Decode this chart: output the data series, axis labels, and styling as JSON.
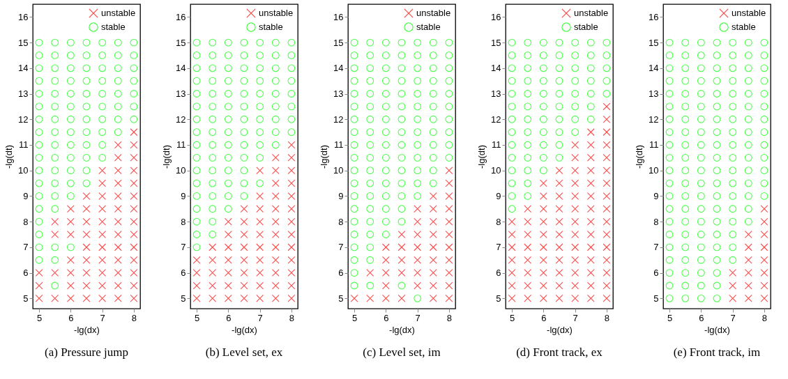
{
  "chart_data": [
    {
      "type": "scatter",
      "title": "(a) Pressure jump",
      "xlabel": "-lg(dx)",
      "ylabel": "-lg(dt)",
      "xlim": [
        4.8,
        8.2
      ],
      "ylim": [
        4.6,
        16.5
      ],
      "xticks": [
        5,
        6,
        7,
        8
      ],
      "yticks": [
        5,
        6,
        7,
        8,
        9,
        10,
        11,
        12,
        13,
        14,
        15,
        16
      ],
      "grid": false,
      "legend": "top right",
      "series": [
        {
          "name": "unstable",
          "color": "#ff0000",
          "marker": "cross",
          "x": [
            5,
            5,
            5,
            5.5,
            5.5,
            5.5,
            5.5,
            6,
            6,
            6,
            6,
            6,
            6,
            6,
            6.5,
            6.5,
            6.5,
            6.5,
            6.5,
            6.5,
            6.5,
            6.5,
            6.5,
            7,
            7,
            7,
            7,
            7,
            7,
            7,
            7,
            7,
            7,
            7,
            7.5,
            7.5,
            7.5,
            7.5,
            7.5,
            7.5,
            7.5,
            7.5,
            7.5,
            7.5,
            7.5,
            7.5,
            7.5,
            8,
            8,
            8,
            8,
            8,
            8,
            8,
            8,
            8,
            8,
            8,
            8,
            8,
            8
          ],
          "values": [
            5,
            5.5,
            6,
            5,
            6,
            7.5,
            8,
            5,
            5.5,
            6,
            6.5,
            7.5,
            8,
            8.5,
            5,
            5.5,
            6,
            6.5,
            7,
            7.5,
            8,
            8.5,
            9,
            5,
            5.5,
            6,
            6.5,
            7,
            7.5,
            8,
            8.5,
            9,
            9.5,
            10,
            5,
            5.5,
            6,
            6.5,
            7,
            7.5,
            8,
            8.5,
            9,
            9.5,
            10,
            10.5,
            11,
            5,
            5.5,
            6,
            6.5,
            7,
            7.5,
            8,
            8.5,
            9,
            9.5,
            10,
            10.5,
            11,
            11.5
          ]
        },
        {
          "name": "stable",
          "color": "#00ff00",
          "marker": "circle",
          "x": [
            5,
            5,
            5,
            5,
            5,
            5,
            5,
            5,
            5,
            5,
            5,
            5,
            5,
            5,
            5,
            5,
            5,
            5,
            5.5,
            5.5,
            5.5,
            5.5,
            5.5,
            5.5,
            5.5,
            5.5,
            5.5,
            5.5,
            5.5,
            5.5,
            5.5,
            5.5,
            5.5,
            5.5,
            5.5,
            6,
            6,
            6,
            6,
            6,
            6,
            6,
            6,
            6,
            6,
            6,
            6,
            6,
            6,
            6.5,
            6.5,
            6.5,
            6.5,
            6.5,
            6.5,
            6.5,
            6.5,
            6.5,
            6.5,
            6.5,
            6.5,
            7,
            7,
            7,
            7,
            7,
            7,
            7,
            7,
            7,
            7,
            7.5,
            7.5,
            7.5,
            7.5,
            7.5,
            7.5,
            7.5,
            7.5,
            8,
            8,
            8,
            8,
            8,
            8,
            8
          ],
          "values": [
            6.5,
            7,
            7.5,
            8,
            8.5,
            9,
            9.5,
            10,
            10.5,
            11,
            11.5,
            12,
            12.5,
            13,
            13.5,
            14,
            14.5,
            15,
            5.5,
            6.5,
            7,
            8.5,
            9,
            9.5,
            10,
            10.5,
            11,
            11.5,
            12,
            12.5,
            13,
            13.5,
            14,
            14.5,
            15,
            7,
            9,
            9.5,
            10,
            10.5,
            11,
            11.5,
            12,
            12.5,
            13,
            13.5,
            14,
            14.5,
            15,
            9.5,
            10,
            10.5,
            11,
            11.5,
            12,
            12.5,
            13,
            13.5,
            14,
            14.5,
            15,
            10.5,
            11,
            11.5,
            12,
            12.5,
            13,
            13.5,
            14,
            14.5,
            15,
            11.5,
            12,
            12.5,
            13,
            13.5,
            14,
            14.5,
            15,
            12,
            12.5,
            13,
            13.5,
            14,
            14.5,
            15
          ]
        }
      ]
    },
    {
      "type": "scatter",
      "title": "(b) Level set, ex",
      "xlabel": "-lg(dx)",
      "ylabel": "-lg(dt)",
      "xlim": [
        4.8,
        8.2
      ],
      "ylim": [
        4.6,
        16.5
      ],
      "xticks": [
        5,
        6,
        7,
        8
      ],
      "yticks": [
        5,
        6,
        7,
        8,
        9,
        10,
        11,
        12,
        13,
        14,
        15,
        16
      ],
      "grid": false,
      "legend": "top right",
      "series": [
        {
          "name": "unstable",
          "color": "#ff0000",
          "marker": "cross",
          "x": [
            5,
            5,
            5,
            5,
            5.5,
            5.5,
            5.5,
            5.5,
            5.5,
            6,
            6,
            6,
            6,
            6,
            6,
            6,
            6.5,
            6.5,
            6.5,
            6.5,
            6.5,
            6.5,
            6.5,
            6.5,
            7,
            7,
            7,
            7,
            7,
            7,
            7,
            7,
            7,
            7,
            7.5,
            7.5,
            7.5,
            7.5,
            7.5,
            7.5,
            7.5,
            7.5,
            7.5,
            7.5,
            7.5,
            7.5,
            8,
            8,
            8,
            8,
            8,
            8,
            8,
            8,
            8,
            8,
            8,
            8,
            8
          ],
          "values": [
            5,
            5.5,
            6,
            6.5,
            5,
            5.5,
            6,
            6.5,
            7,
            5,
            5.5,
            6,
            6.5,
            7,
            7.5,
            8,
            5,
            5.5,
            6,
            6.5,
            7,
            7.5,
            8,
            8.5,
            5,
            5.5,
            6,
            6.5,
            7,
            7.5,
            8,
            8.5,
            9,
            10,
            5,
            5.5,
            6,
            6.5,
            7,
            7.5,
            8,
            8.5,
            9,
            9.5,
            10,
            10.5,
            5,
            5.5,
            6,
            6.5,
            7,
            7.5,
            8,
            8.5,
            9,
            9.5,
            10,
            10.5,
            11
          ]
        },
        {
          "name": "stable",
          "color": "#00ff00",
          "marker": "circle",
          "x": [
            5,
            5,
            5,
            5,
            5,
            5,
            5,
            5,
            5,
            5,
            5,
            5,
            5,
            5,
            5,
            5,
            5,
            5.5,
            5.5,
            5.5,
            5.5,
            5.5,
            5.5,
            5.5,
            5.5,
            5.5,
            5.5,
            5.5,
            5.5,
            5.5,
            5.5,
            5.5,
            5.5,
            6,
            6,
            6,
            6,
            6,
            6,
            6,
            6,
            6,
            6,
            6,
            6,
            6,
            6,
            6.5,
            6.5,
            6.5,
            6.5,
            6.5,
            6.5,
            6.5,
            6.5,
            6.5,
            6.5,
            6.5,
            6.5,
            6.5,
            7,
            7,
            7,
            7,
            7,
            7,
            7,
            7,
            7,
            7,
            7,
            7.5,
            7.5,
            7.5,
            7.5,
            7.5,
            7.5,
            7.5,
            7.5,
            7.5,
            8,
            8,
            8,
            8,
            8,
            8,
            8,
            8
          ],
          "values": [
            7,
            7.5,
            8,
            8.5,
            9,
            9.5,
            10,
            10.5,
            11,
            11.5,
            12,
            12.5,
            13,
            13.5,
            14,
            14.5,
            15,
            7.5,
            8,
            8.5,
            9,
            9.5,
            10,
            10.5,
            11,
            11.5,
            12,
            12.5,
            13,
            13.5,
            14,
            14.5,
            15,
            8.5,
            9,
            9.5,
            10,
            10.5,
            11,
            11.5,
            12,
            12.5,
            13,
            13.5,
            14,
            14.5,
            15,
            9,
            9.5,
            10,
            10.5,
            11,
            11.5,
            12,
            12.5,
            13,
            13.5,
            14,
            14.5,
            15,
            9.5,
            10.5,
            11,
            11.5,
            12,
            12.5,
            13,
            13.5,
            14,
            14.5,
            15,
            11,
            11.5,
            12,
            12.5,
            13,
            13.5,
            14,
            14.5,
            15,
            11.5,
            12,
            12.5,
            13,
            13.5,
            14,
            14.5,
            15
          ]
        }
      ]
    },
    {
      "type": "scatter",
      "title": "(c) Level set, im",
      "xlabel": "-lg(dx)",
      "ylabel": "-lg(dt)",
      "xlim": [
        4.8,
        8.2
      ],
      "ylim": [
        4.6,
        16.5
      ],
      "xticks": [
        5,
        6,
        7,
        8
      ],
      "yticks": [
        5,
        6,
        7,
        8,
        9,
        10,
        11,
        12,
        13,
        14,
        15,
        16
      ],
      "grid": false,
      "legend": "top right",
      "series": [
        {
          "name": "unstable",
          "color": "#ff0000",
          "marker": "cross",
          "x": [
            5,
            5.5,
            5.5,
            6,
            6,
            6,
            6,
            6,
            6.5,
            6.5,
            6.5,
            6.5,
            6.5,
            7,
            7,
            7,
            7,
            7,
            7,
            7,
            7.5,
            7.5,
            7.5,
            7.5,
            7.5,
            7.5,
            7.5,
            7.5,
            7.5,
            8,
            8,
            8,
            8,
            8,
            8,
            8,
            8,
            8,
            8,
            8
          ],
          "values": [
            5,
            5,
            6,
            5,
            5.5,
            6,
            6.5,
            7,
            5,
            6,
            6.5,
            7,
            7.5,
            5.5,
            6,
            6.5,
            7,
            7.5,
            8,
            8.5,
            5,
            5.5,
            6,
            6.5,
            7,
            7.5,
            8,
            8.5,
            9,
            5,
            5.5,
            6,
            6.5,
            7,
            7.5,
            8,
            8.5,
            9,
            9.5,
            10
          ]
        },
        {
          "name": "stable",
          "color": "#00ff00",
          "marker": "circle",
          "x": [
            5,
            5,
            5,
            5,
            5,
            5,
            5,
            5,
            5,
            5,
            5,
            5,
            5,
            5,
            5,
            5,
            5,
            5,
            5,
            5,
            5.5,
            5.5,
            5.5,
            5.5,
            5.5,
            5.5,
            5.5,
            5.5,
            5.5,
            5.5,
            5.5,
            5.5,
            5.5,
            5.5,
            5.5,
            5.5,
            5.5,
            5.5,
            5.5,
            6,
            6,
            6,
            6,
            6,
            6,
            6,
            6,
            6,
            6,
            6,
            6,
            6,
            6,
            6,
            6,
            6.5,
            6.5,
            6.5,
            6.5,
            6.5,
            6.5,
            6.5,
            6.5,
            6.5,
            6.5,
            6.5,
            6.5,
            6.5,
            6.5,
            6.5,
            6.5,
            7,
            7,
            7,
            7,
            7,
            7,
            7,
            7,
            7,
            7,
            7,
            7,
            7,
            7,
            7.5,
            7.5,
            7.5,
            7.5,
            7.5,
            7.5,
            7.5,
            7.5,
            7.5,
            7.5,
            7.5,
            7.5,
            8,
            8,
            8,
            8,
            8,
            8,
            8,
            8,
            8,
            8
          ],
          "values": [
            5.5,
            6,
            6.5,
            7,
            7.5,
            8,
            8.5,
            9,
            9.5,
            10,
            10.5,
            11,
            11.5,
            12,
            12.5,
            13,
            13.5,
            14,
            14.5,
            15,
            5.5,
            6.5,
            7,
            7.5,
            8,
            8.5,
            9,
            9.5,
            10,
            10.5,
            11,
            11.5,
            12,
            12.5,
            13,
            13.5,
            14,
            14.5,
            15,
            7.5,
            8,
            8.5,
            9,
            9.5,
            10,
            10.5,
            11,
            11.5,
            12,
            12.5,
            13,
            13.5,
            14,
            14.5,
            15,
            5.5,
            8,
            8.5,
            9,
            9.5,
            10,
            10.5,
            11,
            11.5,
            12,
            12.5,
            13,
            13.5,
            14,
            14.5,
            15,
            5,
            9,
            9.5,
            10,
            10.5,
            11,
            11.5,
            12,
            12.5,
            13,
            13.5,
            14,
            14.5,
            15,
            9.5,
            10,
            10.5,
            11,
            11.5,
            12,
            12.5,
            13,
            13.5,
            14,
            14.5,
            15,
            10.5,
            11,
            11.5,
            12,
            12.5,
            13,
            13.5,
            14,
            14.5,
            15
          ]
        }
      ]
    },
    {
      "type": "scatter",
      "title": "(d) Front track, ex",
      "xlabel": "-lg(dx)",
      "ylabel": "-lg(dt)",
      "xlim": [
        4.8,
        8.2
      ],
      "ylim": [
        4.6,
        16.5
      ],
      "xticks": [
        5,
        6,
        7,
        8
      ],
      "yticks": [
        5,
        6,
        7,
        8,
        9,
        10,
        11,
        12,
        13,
        14,
        15,
        16
      ],
      "grid": false,
      "legend": "top right",
      "series": [
        {
          "name": "unstable",
          "color": "#ff0000",
          "marker": "cross",
          "x": [
            5,
            5,
            5,
            5,
            5,
            5,
            5,
            5.5,
            5.5,
            5.5,
            5.5,
            5.5,
            5.5,
            5.5,
            5.5,
            6,
            6,
            6,
            6,
            6,
            6,
            6,
            6,
            6,
            6,
            6.5,
            6.5,
            6.5,
            6.5,
            6.5,
            6.5,
            6.5,
            6.5,
            6.5,
            6.5,
            6.5,
            7,
            7,
            7,
            7,
            7,
            7,
            7,
            7,
            7,
            7,
            7,
            7,
            7,
            7.5,
            7.5,
            7.5,
            7.5,
            7.5,
            7.5,
            7.5,
            7.5,
            7.5,
            7.5,
            7.5,
            7.5,
            7.5,
            7.5,
            8,
            8,
            8,
            8,
            8,
            8,
            8,
            8,
            8,
            8,
            8,
            8,
            8,
            8,
            8,
            8
          ],
          "values": [
            5,
            5.5,
            6,
            6.5,
            7,
            7.5,
            8,
            5,
            5.5,
            6,
            6.5,
            7,
            7.5,
            8,
            8.5,
            5,
            5.5,
            6,
            6.5,
            7,
            7.5,
            8,
            8.5,
            9,
            9.5,
            5,
            5.5,
            6,
            6.5,
            7,
            7.5,
            8,
            8.5,
            9,
            9.5,
            10,
            5,
            5.5,
            6,
            6.5,
            7,
            7.5,
            8,
            8.5,
            9,
            9.5,
            10,
            10.5,
            11,
            5,
            5.5,
            6,
            6.5,
            7,
            7.5,
            8,
            8.5,
            9,
            9.5,
            10,
            10.5,
            11,
            11.5,
            5,
            5.5,
            6,
            6.5,
            7,
            7.5,
            8,
            8.5,
            9,
            9.5,
            10,
            10.5,
            11,
            11.5,
            12,
            12.5
          ]
        },
        {
          "name": "stable",
          "color": "#00ff00",
          "marker": "circle",
          "x": [
            5,
            5,
            5,
            5,
            5,
            5,
            5,
            5,
            5,
            5,
            5,
            5,
            5,
            5,
            5.5,
            5.5,
            5.5,
            5.5,
            5.5,
            5.5,
            5.5,
            5.5,
            5.5,
            5.5,
            5.5,
            5.5,
            5.5,
            6,
            6,
            6,
            6,
            6,
            6,
            6,
            6,
            6,
            6,
            6,
            6.5,
            6.5,
            6.5,
            6.5,
            6.5,
            6.5,
            6.5,
            6.5,
            6.5,
            6.5,
            7,
            7,
            7,
            7,
            7,
            7,
            7,
            7,
            7.5,
            7.5,
            7.5,
            7.5,
            7.5,
            7.5,
            7.5,
            8,
            8,
            8,
            8,
            8
          ],
          "values": [
            8.5,
            9,
            9.5,
            10,
            10.5,
            11,
            11.5,
            12,
            12.5,
            13,
            13.5,
            14,
            14.5,
            15,
            9,
            9.5,
            10,
            10.5,
            11,
            11.5,
            12,
            12.5,
            13,
            13.5,
            14,
            14.5,
            15,
            10,
            10.5,
            11,
            11.5,
            12,
            12.5,
            13,
            13.5,
            14,
            14.5,
            15,
            10.5,
            11,
            11.5,
            12,
            12.5,
            13,
            13.5,
            14,
            14.5,
            15,
            11.5,
            12,
            12.5,
            13,
            13.5,
            14,
            14.5,
            15,
            12,
            12.5,
            13,
            13.5,
            14,
            14.5,
            15,
            13,
            13.5,
            14,
            14.5,
            15
          ]
        }
      ]
    },
    {
      "type": "scatter",
      "title": "(e) Front track, im",
      "xlabel": "-lg(dx)",
      "ylabel": "-lg(dt)",
      "xlim": [
        4.8,
        8.2
      ],
      "ylim": [
        4.6,
        16.5
      ],
      "xticks": [
        5,
        6,
        7,
        8
      ],
      "yticks": [
        5,
        6,
        7,
        8,
        9,
        10,
        11,
        12,
        13,
        14,
        15,
        16
      ],
      "grid": false,
      "legend": "top right",
      "series": [
        {
          "name": "unstable",
          "color": "#ff0000",
          "marker": "cross",
          "x": [
            7,
            7,
            7,
            7.5,
            7.5,
            7.5,
            7.5,
            7.5,
            7.5,
            8,
            8,
            8,
            8,
            8,
            8,
            8,
            8
          ],
          "values": [
            5,
            5.5,
            6,
            5,
            5.5,
            6,
            6.5,
            7,
            7.5,
            5,
            5.5,
            6,
            6.5,
            7,
            7.5,
            8,
            8.5
          ]
        },
        {
          "name": "stable",
          "color": "#00ff00",
          "marker": "circle",
          "x": [
            5,
            5,
            5,
            5,
            5,
            5,
            5,
            5,
            5,
            5,
            5,
            5,
            5,
            5,
            5,
            5,
            5,
            5,
            5,
            5,
            5,
            5.5,
            5.5,
            5.5,
            5.5,
            5.5,
            5.5,
            5.5,
            5.5,
            5.5,
            5.5,
            5.5,
            5.5,
            5.5,
            5.5,
            5.5,
            5.5,
            5.5,
            5.5,
            5.5,
            5.5,
            5.5,
            6,
            6,
            6,
            6,
            6,
            6,
            6,
            6,
            6,
            6,
            6,
            6,
            6,
            6,
            6,
            6,
            6,
            6,
            6,
            6,
            6,
            6.5,
            6.5,
            6.5,
            6.5,
            6.5,
            6.5,
            6.5,
            6.5,
            6.5,
            6.5,
            6.5,
            6.5,
            6.5,
            6.5,
            6.5,
            6.5,
            6.5,
            6.5,
            6.5,
            6.5,
            6.5,
            7,
            7,
            7,
            7,
            7,
            7,
            7,
            7,
            7,
            7,
            7,
            7,
            7,
            7,
            7,
            7,
            7,
            7,
            7.5,
            7.5,
            7.5,
            7.5,
            7.5,
            7.5,
            7.5,
            7.5,
            7.5,
            7.5,
            7.5,
            7.5,
            7.5,
            7.5,
            7.5,
            8,
            8,
            8,
            8,
            8,
            8,
            8,
            8,
            8,
            8,
            8,
            8,
            8
          ],
          "values": [
            5,
            5.5,
            6,
            6.5,
            7,
            7.5,
            8,
            8.5,
            9,
            9.5,
            10,
            10.5,
            11,
            11.5,
            12,
            12.5,
            13,
            13.5,
            14,
            14.5,
            15,
            5,
            5.5,
            6,
            6.5,
            7,
            7.5,
            8,
            8.5,
            9,
            9.5,
            10,
            10.5,
            11,
            11.5,
            12,
            12.5,
            13,
            13.5,
            14,
            14.5,
            15,
            5,
            5.5,
            6,
            6.5,
            7,
            7.5,
            8,
            8.5,
            9,
            9.5,
            10,
            10.5,
            11,
            11.5,
            12,
            12.5,
            13,
            13.5,
            14,
            14.5,
            15,
            5,
            5.5,
            6,
            6.5,
            7,
            7.5,
            8,
            8.5,
            9,
            9.5,
            10,
            10.5,
            11,
            11.5,
            12,
            12.5,
            13,
            13.5,
            14,
            14.5,
            15,
            6.5,
            7,
            7.5,
            8,
            8.5,
            9,
            9.5,
            10,
            10.5,
            11,
            11.5,
            12,
            12.5,
            13,
            13.5,
            14,
            14.5,
            15,
            8,
            8.5,
            9,
            9.5,
            10,
            10.5,
            11,
            11.5,
            12,
            12.5,
            13,
            13.5,
            14,
            14.5,
            15,
            9,
            9.5,
            10,
            10.5,
            11,
            11.5,
            12,
            12.5,
            13,
            13.5,
            14,
            14.5,
            15
          ]
        }
      ]
    }
  ]
}
